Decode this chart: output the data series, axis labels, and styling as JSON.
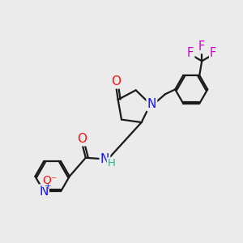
{
  "bg_color": "#ebebeb",
  "bond_color": "#1a1a1a",
  "bond_width": 1.6,
  "atom_colors": {
    "N": "#1414ff",
    "O": "#ff1414",
    "F": "#cc00cc",
    "C": "#1a1a1a",
    "H": "#2db388"
  }
}
